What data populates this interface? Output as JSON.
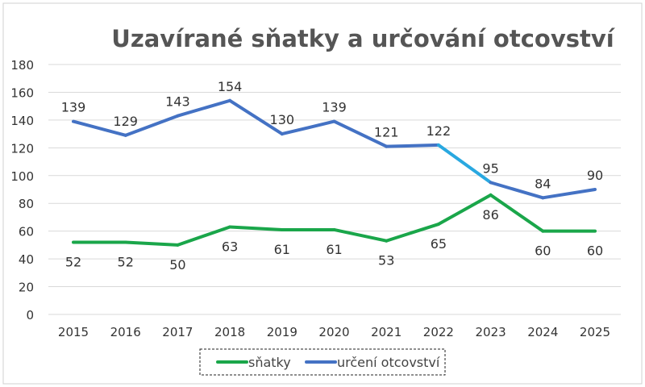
{
  "chart_data": {
    "type": "line",
    "title": "Uzavírané sňatky a určování otcovství",
    "categories": [
      "2015",
      "2016",
      "2017",
      "2018",
      "2019",
      "2020",
      "2021",
      "2022",
      "2023",
      "2024",
      "2025"
    ],
    "series": [
      {
        "name": "sňatky",
        "color": "#1aa64a",
        "values": [
          52,
          52,
          50,
          63,
          61,
          61,
          53,
          65,
          86,
          60,
          60
        ]
      },
      {
        "name": "určení otcovství",
        "color": "#4472c4",
        "highlight_segment_color": "#29a8e0",
        "highlight_segment": [
          "2022",
          "2023"
        ],
        "values": [
          139,
          129,
          143,
          154,
          130,
          139,
          121,
          122,
          95,
          84,
          90
        ]
      }
    ],
    "yticks": [
      0,
      20,
      40,
      60,
      80,
      100,
      120,
      140,
      160,
      180
    ],
    "ylim": [
      0,
      180
    ],
    "grid": true,
    "legend": "bottom",
    "xlabel": "",
    "ylabel": ""
  }
}
